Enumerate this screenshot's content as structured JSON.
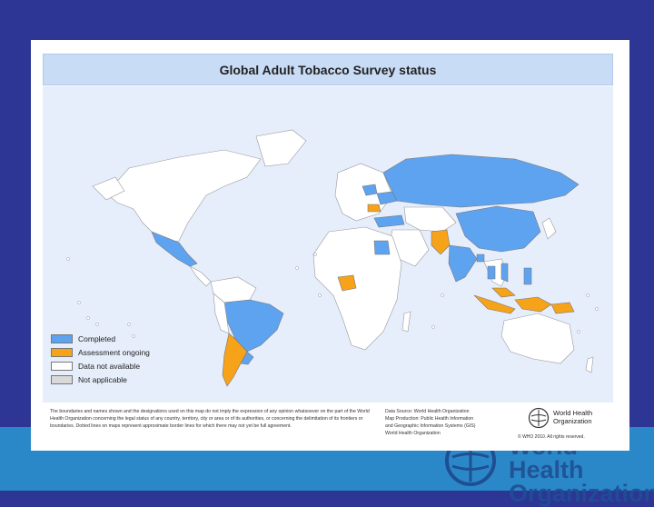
{
  "title": "Global Adult Tobacco Survey status",
  "legend": [
    {
      "label": "Completed",
      "color": "#5ea3f0"
    },
    {
      "label": "Assessment ongoing",
      "color": "#f6a319"
    },
    {
      "label": "Data not available",
      "color": "#ffffff"
    },
    {
      "label": "Not applicable",
      "color": "#d9d9d9"
    }
  ],
  "disclaimer": "The boundaries and names shown and the designations used on this map do not imply the expression of any opinion whatsoever on the part of the World Health Organization concerning the legal status of any country, territory, city or area or of its authorities, or concerning the delimitation of its frontiers or boundaries. Dotted lines on maps represent approximate border lines for which there may not yet be full agreement.",
  "source_lines": [
    "Data Source: World Health Organization",
    "Map Production: Public Health Information",
    "and Geographic Information Systems (GIS)",
    "World Health Organization"
  ],
  "who_logo": {
    "line1": "World Health",
    "line2": "Organization"
  },
  "copyright": "© WHO 2010. All rights reserved.",
  "background_logo": {
    "line1": "World Health",
    "line2": "Organization"
  },
  "colors": {
    "completed": "#5ea3f0",
    "ongoing": "#f6a319",
    "no_data": "#ffffff",
    "not_applicable": "#d9d9d9",
    "ocean": "#e6eefc",
    "slide_background": "#2d3595",
    "band": "#2a88c8"
  }
}
